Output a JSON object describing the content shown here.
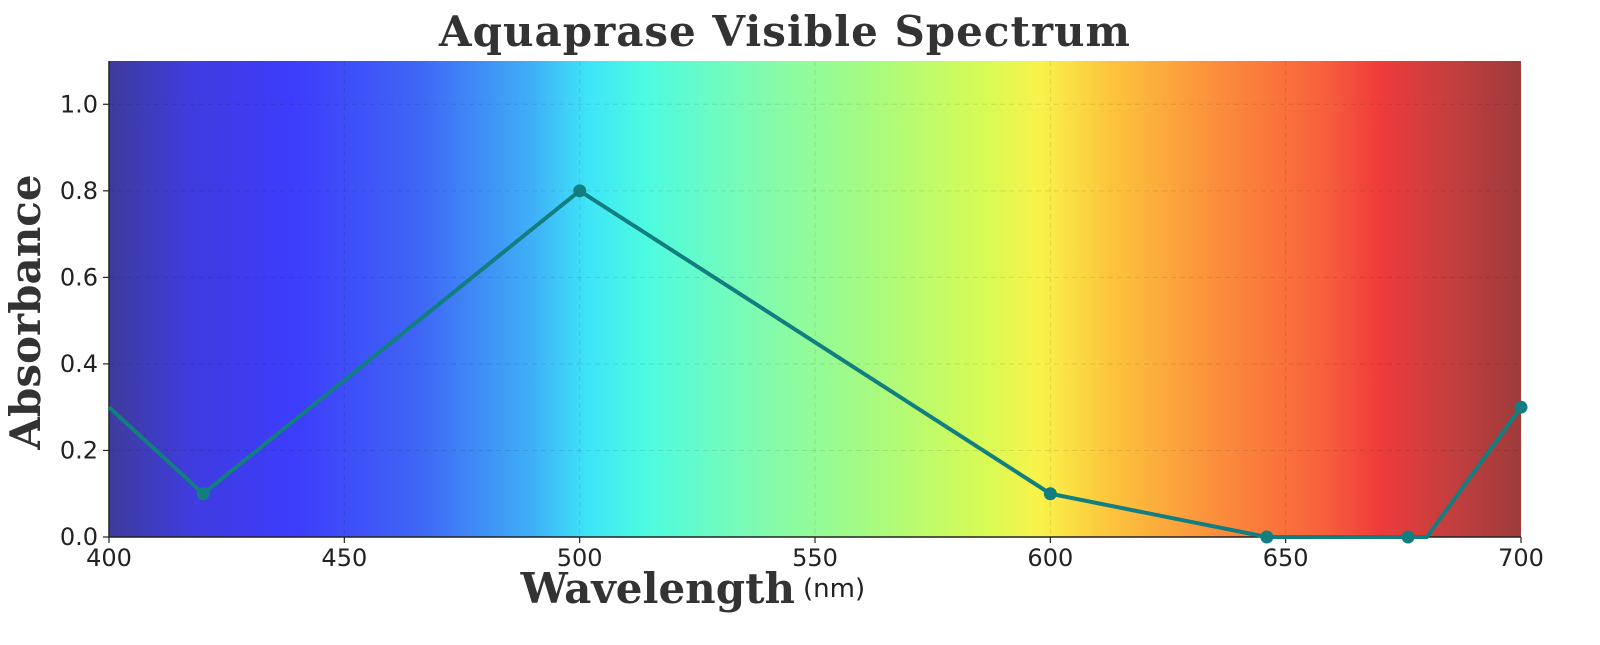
{
  "chart_data": {
    "type": "line",
    "title": "Aquaprase Visible Spectrum",
    "xlabel": "Wavelength",
    "xlabel_unit": "(nm)",
    "ylabel": "Absorbance",
    "xlim": [
      400,
      700
    ],
    "ylim": [
      0,
      1.1
    ],
    "x_ticks": [
      400,
      450,
      500,
      550,
      600,
      650,
      700
    ],
    "x_tick_labels": [
      "400",
      "450",
      "500",
      "550",
      "600",
      "650",
      "700"
    ],
    "y_ticks": [
      0.0,
      0.2,
      0.4,
      0.6,
      0.8,
      1.0
    ],
    "y_tick_labels": [
      "0.0",
      "0.2",
      "0.4",
      "0.6",
      "0.8",
      "1.0"
    ],
    "grid": true,
    "background": "visible-spectrum gradient",
    "series": [
      {
        "color": "#127e80",
        "x": [
          400,
          420,
          500,
          600,
          646,
          676,
          680,
          700
        ],
        "y": [
          0.3,
          0.1,
          0.8,
          0.1,
          0.0,
          0.0,
          0.0,
          0.3
        ],
        "markers": [
          false,
          true,
          true,
          true,
          true,
          true,
          false,
          true
        ]
      }
    ]
  },
  "colors": {
    "line": "#127e80",
    "axis": "#222222",
    "title": "#333333"
  }
}
